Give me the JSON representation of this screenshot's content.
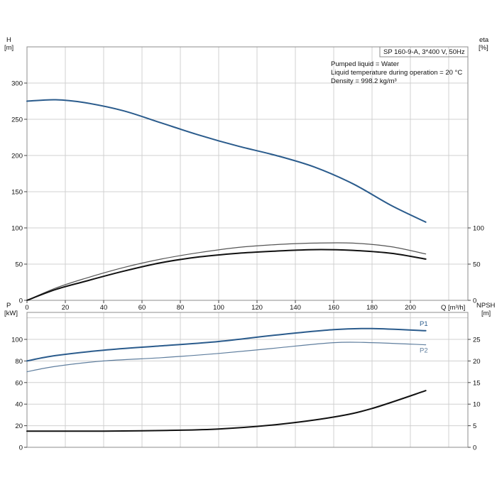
{
  "chart_data": [
    {
      "type": "line",
      "name_box": "SP 160-9-A, 3*400 V, 50Hz",
      "info_lines": [
        "Pumped liquid = Water",
        "Liquid temperature during operation = 20 °C",
        "Density = 998.2 kg/m³"
      ],
      "left_axis": {
        "title_top": "H",
        "title_unit": "[m]",
        "ylim": [
          0,
          350
        ],
        "ticks": [
          0,
          50,
          100,
          150,
          200,
          250,
          300
        ]
      },
      "right_axis": {
        "title_top": "eta",
        "title_unit": "[%]",
        "ylim": [
          0,
          350
        ],
        "ticks": [
          0,
          50,
          100
        ]
      },
      "x_axis": {
        "label": "Q [m³/h]",
        "xlim": [
          0,
          230
        ],
        "ticks": [
          0,
          20,
          40,
          60,
          80,
          100,
          120,
          140,
          160,
          180,
          200
        ]
      },
      "grid": true,
      "series": [
        {
          "key": "H",
          "color": "#2a5b8c",
          "width": 2,
          "x": [
            0,
            15,
            30,
            50,
            70,
            90,
            110,
            130,
            150,
            170,
            190,
            208
          ],
          "y": [
            275,
            277,
            273,
            262,
            245,
            228,
            213,
            200,
            184,
            161,
            131,
            108
          ]
        },
        {
          "key": "eta_thin",
          "color": "#555555",
          "width": 1.2,
          "x": [
            0,
            15,
            30,
            50,
            70,
            90,
            110,
            130,
            150,
            170,
            190,
            208
          ],
          "y": [
            0,
            17,
            30,
            45,
            57,
            66,
            73,
            77,
            79,
            79,
            74,
            64
          ]
        },
        {
          "key": "eta_thick",
          "color": "#111111",
          "width": 2,
          "x": [
            0,
            15,
            30,
            50,
            70,
            90,
            110,
            130,
            150,
            170,
            190,
            208
          ],
          "y": [
            0,
            15,
            26,
            40,
            52,
            60,
            65,
            68,
            70,
            69,
            65,
            57
          ]
        }
      ]
    },
    {
      "type": "line",
      "left_axis": {
        "title_top": "P",
        "title_unit": "[kW]",
        "ylim": [
          0,
          125
        ],
        "ticks": [
          0,
          20,
          40,
          60,
          80,
          100
        ]
      },
      "right_axis": {
        "title_top": "NPSH",
        "title_unit": "[m]",
        "ylim": [
          0,
          31.25
        ],
        "ticks": [
          0,
          5,
          10,
          15,
          20,
          25
        ]
      },
      "x_axis": {
        "xlim": [
          0,
          230
        ]
      },
      "grid": true,
      "series": [
        {
          "name": "P1",
          "color": "#2a5b8c",
          "width": 2,
          "x": [
            0,
            15,
            40,
            70,
            100,
            130,
            160,
            180,
            208
          ],
          "y": [
            80,
            85,
            90,
            94,
            98,
            104,
            109,
            110,
            108
          ]
        },
        {
          "name": "P2",
          "color": "#5f7e9e",
          "width": 1.2,
          "x": [
            0,
            15,
            40,
            70,
            100,
            130,
            160,
            180,
            208
          ],
          "y": [
            70,
            75,
            80,
            83,
            87,
            92,
            97,
            97,
            95
          ]
        },
        {
          "key": "NPSH",
          "color": "#111111",
          "width": 2,
          "x": [
            0,
            15,
            40,
            70,
            100,
            130,
            160,
            180,
            208
          ],
          "y": [
            15,
            15,
            15,
            15.5,
            17,
            21,
            28,
            36,
            52.5
          ]
        }
      ]
    }
  ]
}
